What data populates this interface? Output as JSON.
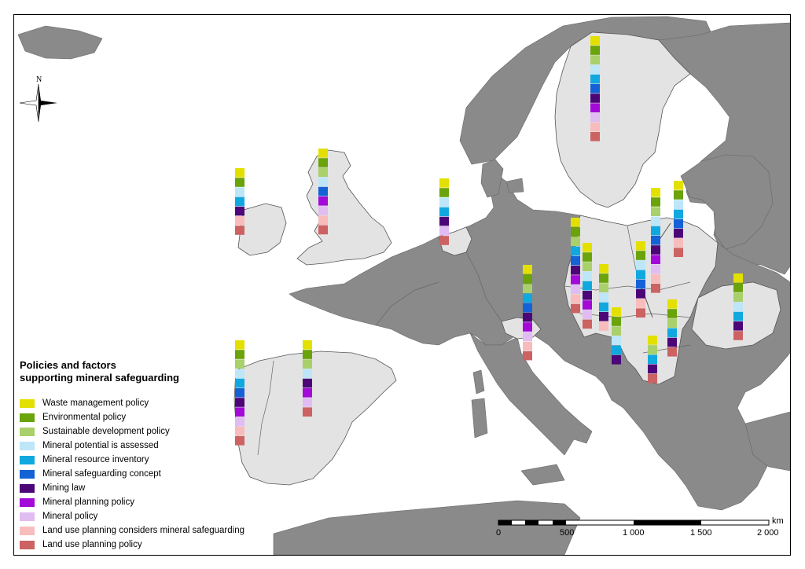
{
  "legend": {
    "title_line1": "Policies and factors",
    "title_line2": "supporting mineral safeguarding",
    "items": [
      {
        "label": "Waste management policy",
        "color": "#e3e000"
      },
      {
        "label": "Environmental policy",
        "color": "#6aa30a"
      },
      {
        "label": "Sustainable development policy",
        "color": "#a9d06a"
      },
      {
        "label": "Mineral potential is assessed",
        "color": "#bde6f8"
      },
      {
        "label": "Mineral resource inventory",
        "color": "#11a8e0"
      },
      {
        "label": "Mineral safeguarding concept",
        "color": "#1562d6"
      },
      {
        "label": "Mining law",
        "color": "#4c0677"
      },
      {
        "label": "Mineral planning policy",
        "color": "#a30ad8"
      },
      {
        "label": "Mineral policy",
        "color": "#e1bcf2"
      },
      {
        "label": "Land use planning considers mineral safeguarding",
        "color": "#f8bcbc"
      },
      {
        "label": "Land use planning policy",
        "color": "#cc6262"
      }
    ]
  },
  "north_arrow": {
    "label": "N"
  },
  "scale_bar": {
    "unit": "km",
    "ticks": [
      "0",
      "500",
      "1 000",
      "1 500",
      "2 000"
    ]
  },
  "map_colors": {
    "sea": "#ffffff",
    "study_country": "#e3e3e3",
    "other_land": "#8a8a8a",
    "border": "#555555"
  },
  "country_stacks": [
    {
      "country": "Ireland",
      "policies": [
        0,
        1,
        3,
        4,
        6,
        9,
        10
      ]
    },
    {
      "country": "United Kingdom",
      "policies": [
        0,
        1,
        2,
        3,
        5,
        7,
        8,
        9,
        10
      ]
    },
    {
      "country": "Netherlands",
      "policies": [
        0,
        1,
        3,
        4,
        6,
        8,
        10
      ]
    },
    {
      "country": "Sweden",
      "policies": [
        0,
        1,
        2,
        3,
        4,
        5,
        6,
        7,
        8,
        9,
        10
      ]
    },
    {
      "country": "Portugal",
      "policies": [
        0,
        1,
        2,
        3,
        4,
        5,
        6,
        7,
        8,
        9,
        10
      ]
    },
    {
      "country": "Spain",
      "policies": [
        0,
        1,
        2,
        3,
        6,
        7,
        8,
        10
      ]
    },
    {
      "country": "Switzerland / Liechtenstein",
      "policies": [
        0,
        1,
        2,
        4,
        5,
        6,
        7,
        8,
        9,
        10
      ]
    },
    {
      "country": "Germany",
      "policies": [
        0,
        1,
        2,
        4,
        5,
        6,
        7,
        8,
        9,
        10
      ]
    },
    {
      "country": "Czech Republic",
      "policies": [
        0,
        1,
        2,
        3,
        4,
        6,
        7,
        8,
        10
      ]
    },
    {
      "country": "Austria",
      "policies": [
        0,
        1,
        2,
        3,
        4,
        6,
        9
      ]
    },
    {
      "country": "Slovenia",
      "policies": [
        0,
        1,
        2,
        3,
        4,
        6
      ]
    },
    {
      "country": "Slovakia",
      "policies": [
        0,
        1,
        3,
        4,
        5,
        6,
        9,
        10
      ]
    },
    {
      "country": "Poland West",
      "policies": [
        0,
        1,
        2,
        3,
        4,
        5,
        6,
        7,
        8,
        9,
        10
      ]
    },
    {
      "country": "Poland East",
      "policies": [
        0,
        1,
        3,
        4,
        5,
        6,
        9,
        10
      ]
    },
    {
      "country": "Hungary",
      "policies": [
        0,
        1,
        2,
        4,
        6,
        10
      ]
    },
    {
      "country": "Serbia",
      "policies": [
        0,
        2,
        4,
        6,
        10
      ]
    },
    {
      "country": "Romania",
      "policies": [
        0,
        1,
        2,
        3,
        4,
        6,
        10
      ]
    }
  ]
}
